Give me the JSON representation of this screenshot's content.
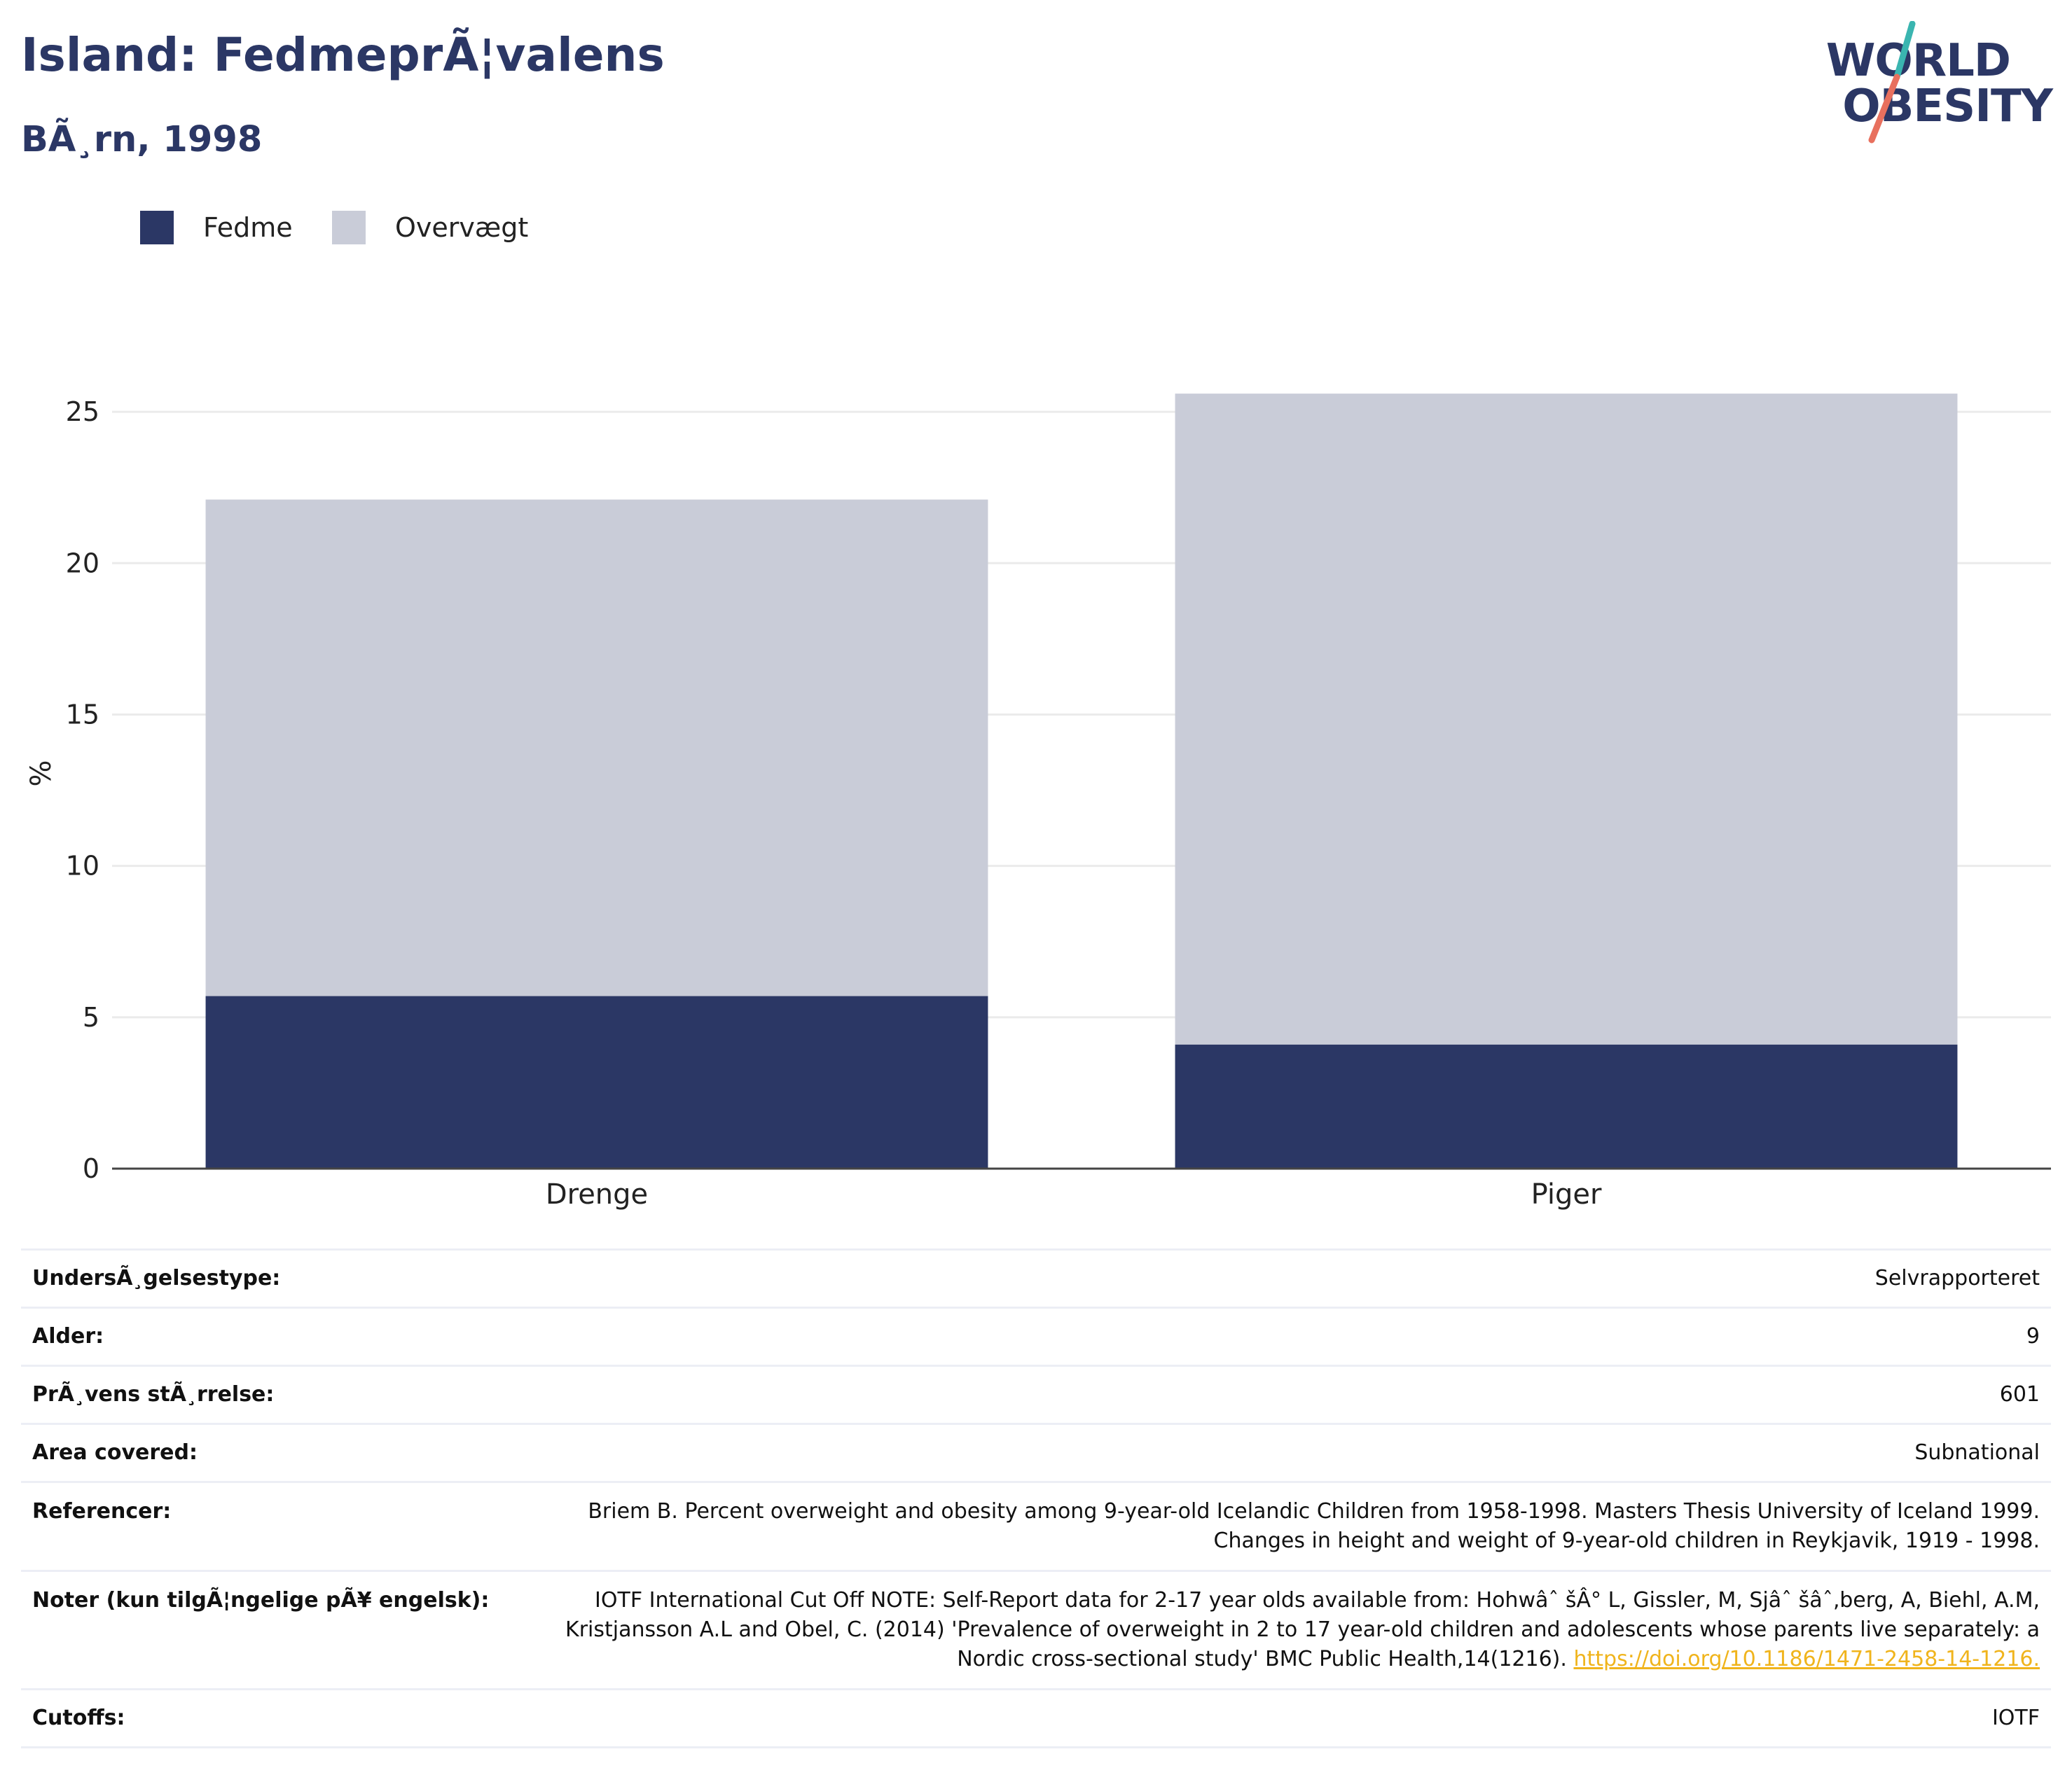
{
  "header": {
    "title": "Island: FedmeprÃ¦valens",
    "subtitle": "BÃ¸rn, 1998",
    "logo_line1": "WORLD",
    "logo_line2": "OBESITY",
    "brand_color": "#2b3765",
    "logo_slash_colors": [
      "#3ab5b0",
      "#e8705e"
    ]
  },
  "legend": [
    {
      "label": "Fedme",
      "color": "#2b3765"
    },
    {
      "label": "Overvægt",
      "color": "#c9ccd8"
    }
  ],
  "chart_data": {
    "type": "bar",
    "stacked": true,
    "categories": [
      "Drenge",
      "Piger"
    ],
    "series": [
      {
        "name": "Fedme",
        "color": "#2b3765",
        "values": [
          5.7,
          4.1
        ]
      },
      {
        "name": "Overvægt",
        "color": "#c9ccd8",
        "values": [
          16.4,
          21.5
        ]
      }
    ],
    "ylabel": "%",
    "ylim": [
      0,
      27.5
    ],
    "yticks": [
      0,
      5,
      10,
      15,
      20,
      25
    ],
    "grid": true,
    "legend_position": "top-left"
  },
  "info": [
    {
      "label": "UndersÃ¸gelsestype:",
      "value": "Selvrapporteret"
    },
    {
      "label": "Alder:",
      "value": "9"
    },
    {
      "label": "PrÃ¸vens stÃ¸rrelse:",
      "value": "601"
    },
    {
      "label": "Area covered:",
      "value": "Subnational"
    },
    {
      "label": "Referencer:",
      "value": "Briem B. Percent overweight and obesity among 9-year-old Icelandic Children from 1958-1998. Masters Thesis University of Iceland 1999. Changes in height and weight of 9-year-old children in Reykjavik, 1919 - 1998."
    },
    {
      "label": "Noter (kun tilgÃ¦ngelige pÃ¥ engelsk):",
      "value": "IOTF International Cut Off NOTE: Self-Report data for 2-17 year olds available from: Hohwâˆ šÂ° L, Gissler, M, Sjâˆ šâˆ‚berg, A, Biehl, A.M, Kristjansson A.L and Obel, C. (2014) 'Prevalence of overweight in 2 to 17 year-old children and adolescents whose parents live separately: a Nordic cross-sectional study' BMC Public Health,14(1216).",
      "link": "https://doi.org/10.1186/1471-2458-14-1216.",
      "link_color": "#f0b41c"
    },
    {
      "label": "Cutoffs:",
      "value": "IOTF"
    }
  ]
}
